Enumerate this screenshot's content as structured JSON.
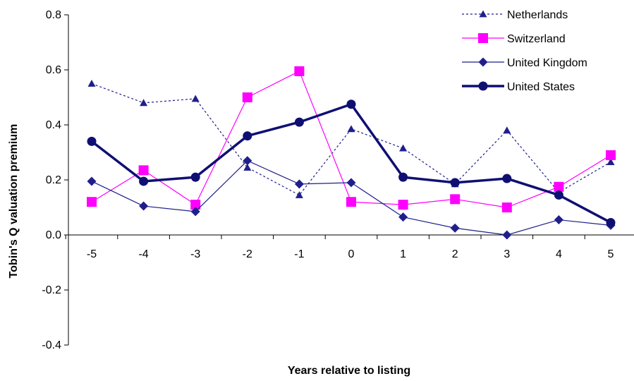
{
  "chart_data": {
    "type": "line",
    "title": "",
    "xlabel": "Years relative to listing",
    "ylabel": "Tobin's Q valuation premium",
    "x": [
      -5,
      -4,
      -3,
      -2,
      -1,
      0,
      1,
      2,
      3,
      4,
      5
    ],
    "x_tick_labels": [
      "-5",
      "-4",
      "-3",
      "-2",
      "-1",
      "0",
      "1",
      "2",
      "3",
      "4",
      "5"
    ],
    "y_tick_labels": [
      "0.8",
      "0.6",
      "0.4",
      "0.2",
      "0.0",
      "-0.2",
      "-0.4"
    ],
    "y_ticks": [
      0.8,
      0.6,
      0.4,
      0.2,
      0.0,
      -0.2,
      -0.4
    ],
    "ylim": [
      -0.4,
      0.8
    ],
    "grid": false,
    "legend_position": "top-right",
    "series": [
      {
        "name": "Netherlands",
        "color": "#1F1F8C",
        "dash": "dotted",
        "marker": "triangle",
        "line_width": "thin",
        "values": [
          0.55,
          0.48,
          0.495,
          0.245,
          0.145,
          0.385,
          0.315,
          0.185,
          0.38,
          0.155,
          0.265
        ]
      },
      {
        "name": "Switzerland",
        "color": "#FF00FF",
        "dash": "solid",
        "marker": "square",
        "line_width": "thin",
        "values": [
          0.12,
          0.235,
          0.11,
          0.5,
          0.595,
          0.12,
          0.11,
          0.13,
          0.1,
          0.175,
          0.29
        ]
      },
      {
        "name": "United Kingdom",
        "color": "#1F1F8C",
        "dash": "solid",
        "marker": "diamond",
        "line_width": "thin",
        "values": [
          0.195,
          0.105,
          0.085,
          0.27,
          0.185,
          0.19,
          0.065,
          0.025,
          0.0,
          0.055,
          0.035
        ]
      },
      {
        "name": "United States",
        "color": "#0F0F73",
        "dash": "solid",
        "marker": "circle",
        "line_width": "thick",
        "values": [
          0.34,
          0.195,
          0.21,
          0.36,
          0.41,
          0.475,
          0.21,
          0.19,
          0.205,
          0.145,
          0.045
        ]
      }
    ]
  }
}
